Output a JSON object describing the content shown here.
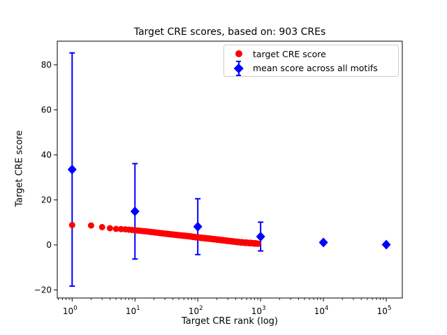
{
  "figure": {
    "background": "#ffffff"
  },
  "chart_data": {
    "type": "scatter",
    "title": "Target CRE scores, based on: 903 CREs",
    "xlabel": "Target CRE rank (log)",
    "ylabel": "Target CRE score",
    "x_scale": "log",
    "xlim": [
      0.58,
      180000
    ],
    "ylim": [
      -23.6,
      90.5
    ],
    "x_major_ticks": [
      1,
      10,
      100,
      1000,
      10000,
      100000
    ],
    "y_ticks": [
      -20,
      0,
      20,
      40,
      60,
      80
    ],
    "grid": false,
    "legend_position": "upper right",
    "series": [
      {
        "name": "target CRE score",
        "marker": "circle",
        "color": "#ff0000",
        "n_points": 903,
        "x_description": "CRE ranks 1 through 903 plotted on the log x-axis; scores decay smoothly, read from anchor points below",
        "anchor_ranks": [
          1,
          2,
          3,
          4,
          5,
          7,
          10,
          15,
          20,
          30,
          50,
          70,
          100,
          150,
          200,
          300,
          400,
          500,
          700,
          903
        ],
        "anchor_scores": [
          8.8,
          8.6,
          7.9,
          7.4,
          7.1,
          6.9,
          6.5,
          6.0,
          5.6,
          5.0,
          4.3,
          3.9,
          3.3,
          2.8,
          2.4,
          1.8,
          1.4,
          1.1,
          0.8,
          0.55
        ]
      },
      {
        "name": "mean score across all motifs",
        "marker": "diamond",
        "color": "#0000ff",
        "x": [
          1,
          10,
          100,
          1000,
          10000,
          100000
        ],
        "y": [
          33.5,
          14.9,
          8.1,
          3.7,
          1.1,
          0.1
        ],
        "yerr": [
          51.8,
          21.2,
          12.4,
          6.4,
          0.3,
          0.2
        ]
      }
    ]
  }
}
